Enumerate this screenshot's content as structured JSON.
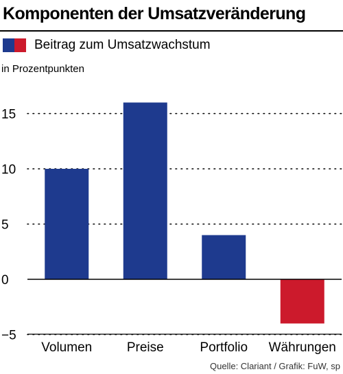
{
  "title": "Komponenten der Umsatzveränderung",
  "legend": {
    "label": "Beitrag zum Umsatzwachstum",
    "colors": [
      "#1e3a8e",
      "#cc1a2c"
    ]
  },
  "unit_label": "in Prozentpunkten",
  "source": "Quelle: Clariant / Grafik: FuW, sp",
  "chart_data": {
    "type": "bar",
    "categories": [
      "Volumen",
      "Preise",
      "Portfolio",
      "Währungen"
    ],
    "series": [
      {
        "name": "Beitrag zum Umsatzwachstum",
        "values": [
          10,
          16,
          4,
          -4
        ]
      }
    ],
    "ylim": [
      -5,
      17
    ],
    "yticks": [
      -5,
      0,
      5,
      10,
      15
    ],
    "ytick_labels": [
      "−5",
      "0",
      "5",
      "10",
      "15"
    ],
    "colors": {
      "positive": "#1e3a8e",
      "negative": "#cc1a2c"
    },
    "grid": true
  }
}
